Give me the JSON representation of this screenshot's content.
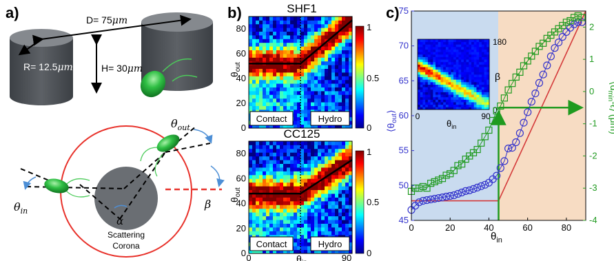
{
  "panel_labels": [
    "a)",
    "b)",
    "c)"
  ],
  "panel_a": {
    "distance_label": "D= 75",
    "height_label": "H= 30",
    "radius_label": "R= 12.5",
    "unit": "μm",
    "theta_in": "θ",
    "theta_in_sub": "in",
    "theta_out": "θ",
    "theta_out_sub": "out",
    "beta": "β",
    "alpha": "α",
    "corona_label_1": "Scattering",
    "corona_label_2": "Corona",
    "colors": {
      "pillar": "#555a5f",
      "bacterium": "#22b14c",
      "corona": "#e8312a",
      "dash_red": "#e8312a"
    }
  },
  "panel_b": {
    "top_title": "SHF1",
    "bottom_title": "CC125",
    "ylabel_main": "θ",
    "ylabel_sub": "out",
    "xlabel_main": "θ",
    "xlabel_sub": "in",
    "y_ticks": [
      "0",
      "20",
      "40",
      "60",
      "80"
    ],
    "x_ticks": [
      "0",
      "90"
    ],
    "colorbar_ticks": [
      "0",
      "0.5",
      "1"
    ],
    "region_left": "Contact",
    "region_right": "Hydro"
  },
  "panel_c": {
    "xlabel_main": "θ",
    "xlabel_sub": "in",
    "ylabel_left": "⟨θ",
    "ylabel_left_sub": "out",
    "ylabel_left_end": "⟩",
    "ylabel_right": "⟨d",
    "ylabel_right_sub": "min",
    "ylabel_right_end": "-ℓ⟩ (μm)",
    "x_ticks": [
      "0",
      "20",
      "40",
      "60",
      "80"
    ],
    "left_ticks": [
      "45",
      "50",
      "55",
      "60",
      "65",
      "70",
      "75"
    ],
    "right_ticks": [
      "-4",
      "-3",
      "-2",
      "-1",
      "0",
      "1",
      "2"
    ],
    "inset": {
      "x_ticks": [
        "0",
        "90"
      ],
      "y_ticks": [
        "0",
        "180"
      ],
      "xlabel_main": "θ",
      "xlabel_sub": "in",
      "ylabel": "β"
    },
    "colors": {
      "left_axis": "#3333cc",
      "right_axis": "#1f9a1f",
      "fit_line": "#d43a3a",
      "bg_left": "#c9dbef",
      "bg_right": "#f7dcc3"
    }
  },
  "chart_data": [
    {
      "type": "heatmap",
      "title": "SHF1",
      "xlabel": "θin",
      "ylabel": "θout",
      "xlim": [
        0,
        90
      ],
      "ylim": [
        0,
        90
      ],
      "colorbar_range": [
        0,
        1
      ],
      "ridge": {
        "x": [
          0,
          45,
          90
        ],
        "y": [
          52,
          52,
          87
        ]
      },
      "divider_x": 45
    },
    {
      "type": "heatmap",
      "title": "CC125",
      "xlabel": "θin",
      "ylabel": "θout",
      "xlim": [
        0,
        90
      ],
      "ylim": [
        0,
        90
      ],
      "colorbar_range": [
        0,
        1
      ],
      "ridge": {
        "x": [
          0,
          45,
          90
        ],
        "y": [
          48,
          48,
          75
        ]
      },
      "divider_x": 45
    },
    {
      "type": "scatter",
      "xlabel": "θin",
      "xlim": [
        0,
        90
      ],
      "ylim_left": [
        45,
        75
      ],
      "ylim_right": [
        -4,
        2.5
      ],
      "series": [
        {
          "axis": "left",
          "x": [
            0,
            2,
            4,
            6,
            8,
            10,
            12,
            14,
            16,
            18,
            20,
            22,
            24,
            26,
            28,
            30,
            32,
            34,
            36,
            38,
            40,
            42,
            44,
            46,
            48,
            50,
            52,
            54,
            56,
            58,
            60,
            62,
            64,
            66,
            68,
            70,
            72,
            74,
            76,
            78,
            80,
            82,
            84,
            86,
            88
          ],
          "y": [
            46.5,
            47.1,
            47.6,
            47.8,
            47.9,
            48,
            48.1,
            48.2,
            48.3,
            48.4,
            48.5,
            48.6,
            48.8,
            49,
            49.2,
            49.3,
            49.5,
            49.7,
            49.9,
            50.1,
            50.4,
            50.9,
            51.4,
            52.5,
            53.5,
            55.3,
            55.4,
            56.2,
            57.5,
            59,
            60.5,
            62,
            63.2,
            64.7,
            65.9,
            67.2,
            68.5,
            69.7,
            70.5,
            71.3,
            72,
            72.6,
            73.1,
            73.4,
            73.4
          ]
        },
        {
          "axis": "right",
          "x": [
            0,
            2,
            4,
            6,
            8,
            10,
            12,
            14,
            16,
            18,
            20,
            22,
            24,
            26,
            28,
            30,
            32,
            34,
            36,
            38,
            40,
            42,
            44,
            46,
            48,
            50,
            52,
            54,
            56,
            58,
            60,
            62,
            64,
            66,
            68,
            70,
            72,
            74,
            76,
            78,
            80,
            82,
            84,
            86,
            88
          ],
          "y": [
            -3.1,
            -3,
            -3,
            -2.95,
            -3,
            -2.85,
            -2.8,
            -2.75,
            -2.7,
            -2.6,
            -2.55,
            -2.45,
            -2.3,
            -2.25,
            -2.1,
            -2,
            -1.9,
            -1.8,
            -1.6,
            -1.4,
            -1.2,
            -0.9,
            -0.6,
            -0.45,
            -0.2,
            0.05,
            0.25,
            0.45,
            0.6,
            0.8,
            0.95,
            1.1,
            1.25,
            1.4,
            1.5,
            1.65,
            1.75,
            1.85,
            1.95,
            2.05,
            2.15,
            2.2,
            2.3,
            2.35,
            2.3
          ]
        },
        {
          "axis": "left",
          "x": [
            0,
            45,
            90
          ],
          "y": [
            47.8,
            47.8,
            75
          ]
        }
      ],
      "guide": {
        "x": 45,
        "left_y": 45,
        "right_y": -0.5
      }
    }
  ]
}
